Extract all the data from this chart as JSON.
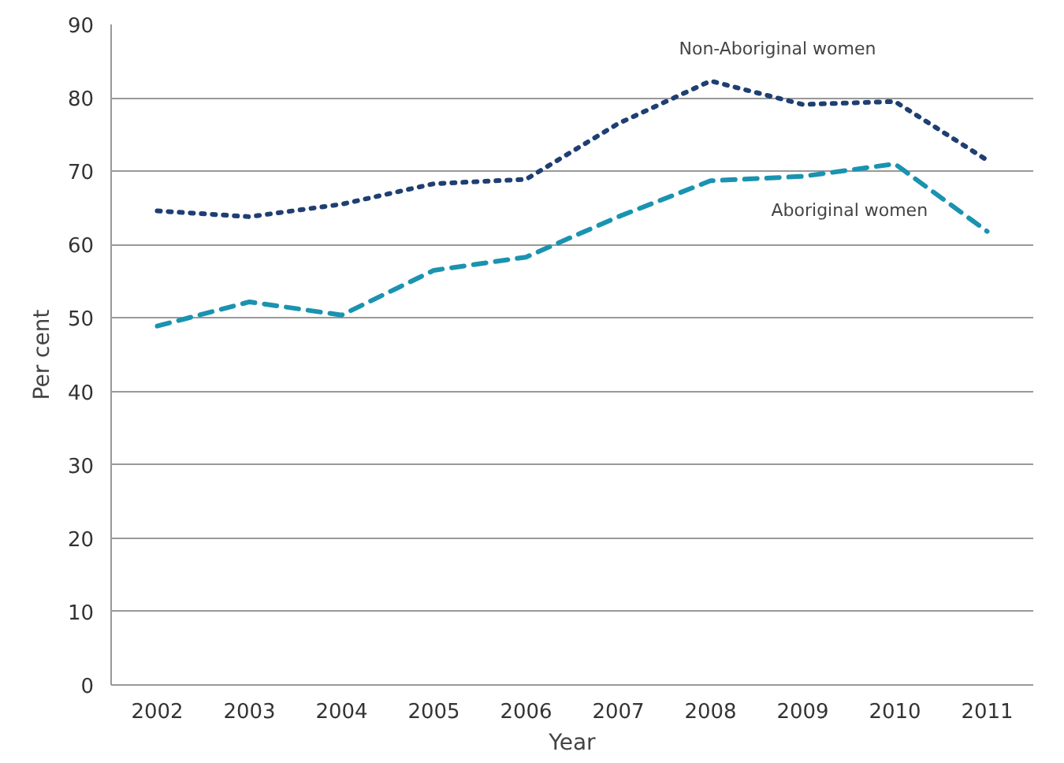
{
  "chart_data": {
    "type": "line",
    "xlabel": "Year",
    "ylabel": "Per cent",
    "categories": [
      "2002",
      "2003",
      "2004",
      "2005",
      "2006",
      "2007",
      "2008",
      "2009",
      "2010",
      "2011"
    ],
    "series": [
      {
        "name": "Non-Aboriginal women",
        "color": "#1f3f73",
        "line_style": "dotted",
        "values": [
          64.6,
          63.8,
          65.5,
          68.3,
          68.9,
          76.5,
          82.3,
          79.1,
          79.5,
          71.5
        ]
      },
      {
        "name": "Aboriginal women",
        "color": "#1a93b0",
        "line_style": "dashed",
        "values": [
          48.9,
          52.2,
          50.4,
          56.5,
          58.3,
          63.8,
          68.7,
          69.3,
          71.0,
          61.8
        ]
      }
    ],
    "ylim": [
      0,
      90
    ],
    "yticks": [
      0,
      10,
      20,
      30,
      40,
      50,
      60,
      70,
      80,
      90
    ],
    "grid": "y"
  }
}
